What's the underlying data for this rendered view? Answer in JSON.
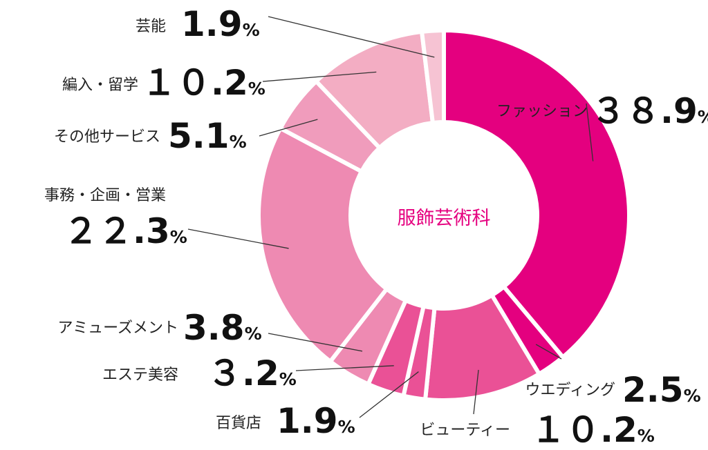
{
  "chart_data": {
    "type": "pie",
    "title": "服飾芸術科",
    "percent_symbol": "%",
    "start_angle_deg": 0,
    "direction": "clockwise",
    "title_color": "#E5007F",
    "separator_color": "#ffffff",
    "slices": [
      {
        "label": "ファッション",
        "value_text": "３８.9",
        "value": 38.9,
        "color": "#E4007F"
      },
      {
        "label": "ウエディング",
        "value_text": "2.5",
        "value": 2.5,
        "color": "#E4007F"
      },
      {
        "label": "ビューティー",
        "value_text": "１０.2",
        "value": 10.2,
        "color": "#EA5196"
      },
      {
        "label": "百貨店",
        "value_text": "1.9",
        "value": 1.9,
        "color": "#EA5196"
      },
      {
        "label": "エステ美容",
        "value_text": "３.2",
        "value": 3.2,
        "color": "#EA5196"
      },
      {
        "label": "アミューズメント",
        "value_text": "3.8",
        "value": 3.8,
        "color": "#EE8AB2"
      },
      {
        "label": "事務・企画・営業",
        "value_text": "２２.3",
        "value": 22.3,
        "color": "#EE8AB2"
      },
      {
        "label": "その他サービス",
        "value_text": "5.1",
        "value": 5.1,
        "color": "#F09CBC"
      },
      {
        "label": "編入・留学",
        "value_text": "１０.2",
        "value": 10.2,
        "color": "#F3ADC3"
      },
      {
        "label": "芸能",
        "value_text": "1.9",
        "value": 1.9,
        "color": "#F6C3D3"
      }
    ]
  }
}
